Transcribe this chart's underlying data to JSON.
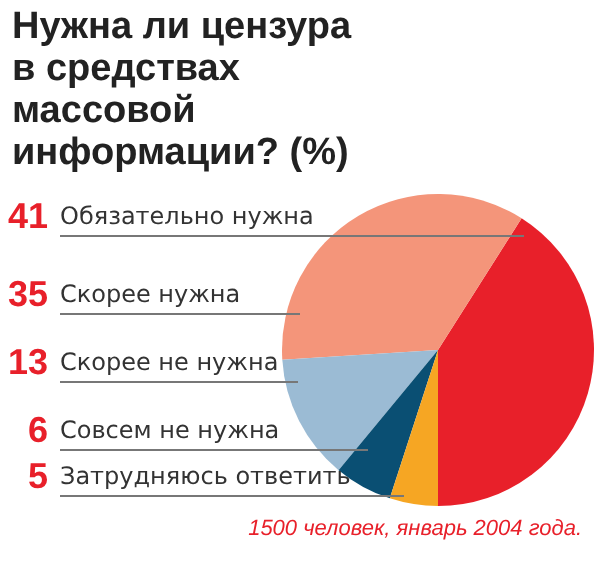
{
  "chart_data": {
    "type": "pie",
    "title": "Нужна ли цензура в средствах массовой информации? (%)",
    "categories": [
      "Обязательно нужна",
      "Скорее нужна",
      "Скорее не нужна",
      "Совсем не нужна",
      "Затрудняюсь ответить"
    ],
    "values": [
      41,
      35,
      13,
      6,
      5
    ],
    "colors": [
      "#e8202a",
      "#f4957a",
      "#9bbbd4",
      "#0a4f73",
      "#f6a623"
    ],
    "data_labels": true,
    "legend": false,
    "annotations": [
      "1500 человек, январь 2004 года."
    ]
  }
}
